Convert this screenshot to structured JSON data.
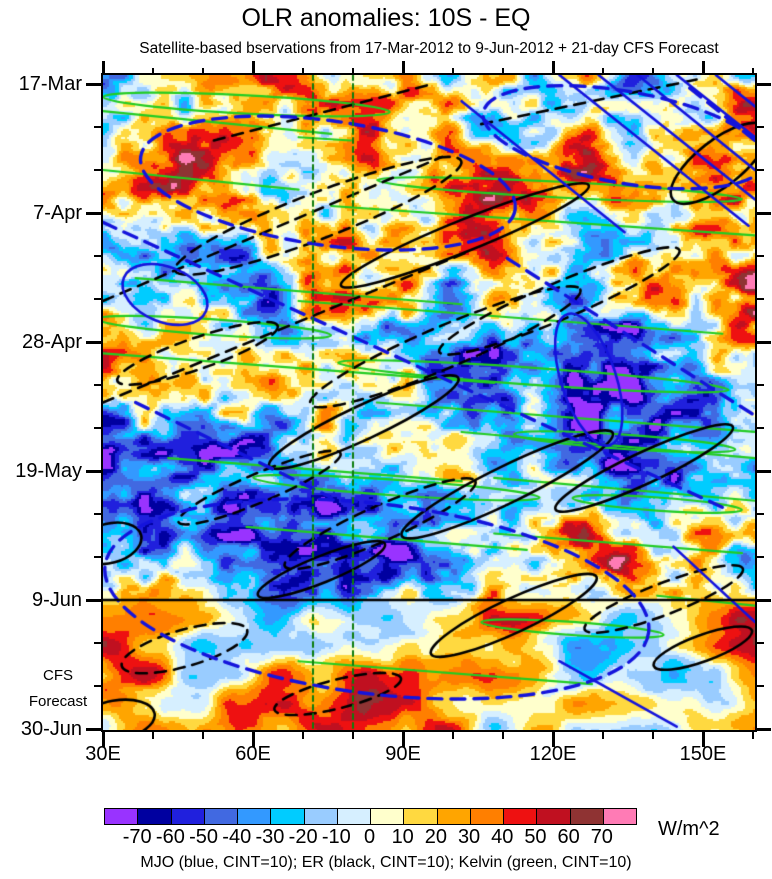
{
  "header": {
    "title": "OLR anomalies: 10S - EQ",
    "subtitle": "Satellite-based bservations from 17-Mar-2012 to 9-Jun-2012 + 21-day CFS Forecast"
  },
  "axes": {
    "y_tick_labels": [
      "17-Mar",
      "7-Apr",
      "28-Apr",
      "19-May",
      "9-Jun",
      "30-Jun"
    ],
    "x_tick_labels": [
      "30E",
      "60E",
      "90E",
      "120E",
      "150E"
    ],
    "cfs_label": [
      "CFS",
      "Forecast"
    ]
  },
  "colorbar": {
    "units": "W/m^2",
    "levels": [
      -70,
      -60,
      -50,
      -40,
      -30,
      -20,
      -10,
      0,
      10,
      20,
      30,
      40,
      50,
      60,
      70
    ],
    "colors": [
      "#9933FF",
      "#0000A0",
      "#2020DD",
      "#4169E1",
      "#3399FF",
      "#00CCFF",
      "#99CCFF",
      "#D6EFFF",
      "#FFFFCC",
      "#FFD940",
      "#FFA500",
      "#FF7F00",
      "#EE1111",
      "#C01020",
      "#8F3333",
      "#FF7BB5"
    ]
  },
  "legend": {
    "text": "MJO (blue, CINT=10); ER (black, CINT=10); Kelvin (green, CINT=10)"
  },
  "chart_data": {
    "type": "heatmap",
    "subtype": "hovmoller_filled_contour",
    "title": "OLR anomalies: 10S - EQ",
    "field_variable": "OLR anomaly",
    "units": "W/m^2",
    "latitude_band": "10S - EQ",
    "x_axis": {
      "label_ticks": [
        "30E",
        "60E",
        "90E",
        "120E",
        "150E"
      ],
      "major_ticks_deg": [
        30,
        60,
        90,
        120,
        150
      ],
      "minor_interval_deg": 10,
      "range_deg_east": [
        30,
        160.4
      ]
    },
    "y_axis": {
      "time_increases_downward": true,
      "major_tick_dates": [
        "17-Mar",
        "7-Apr",
        "28-Apr",
        "19-May",
        "9-Jun",
        "30-Jun"
      ],
      "major_interval_days": 21,
      "minor_interval_days": 7,
      "observation_period": "17-Mar-2012 to 9-Jun-2012",
      "forecast": "21-day CFS Forecast",
      "obs_forecast_boundary_date": "9-Jun"
    },
    "color_levels": [
      -70,
      -60,
      -50,
      -40,
      -30,
      -20,
      -10,
      0,
      10,
      20,
      30,
      40,
      50,
      60,
      70
    ],
    "palette": [
      "#9933FF",
      "#0000A0",
      "#2020DD",
      "#4169E1",
      "#3399FF",
      "#00CCFF",
      "#99CCFF",
      "#D6EFFF",
      "#FFFFCC",
      "#FFD940",
      "#FFA500",
      "#FF7F00",
      "#EE1111",
      "#C01020",
      "#8F3333",
      "#FF7BB5"
    ],
    "reference_longitudes_deg": [
      72,
      80
    ],
    "reference_line_color": "#0D7D0D",
    "overlays": {
      "mjo": {
        "color": "#1414DC",
        "cint": 10,
        "dashed_ellipses": [
          {
            "cx": 0.345,
            "cy": 0.165,
            "rx": 0.29,
            "ry": 0.095,
            "rot": 8
          },
          {
            "cx": 0.42,
            "cy": 0.8,
            "rx": 0.42,
            "ry": 0.145,
            "rot": 7
          },
          {
            "cx": 0.8,
            "cy": 0.095,
            "rx": 0.22,
            "ry": 0.07,
            "rot": 10
          }
        ],
        "dashed_lines": [
          {
            "x0": 0.0,
            "y0": 0.225,
            "x1": 0.45,
            "y1": 0.43
          },
          {
            "x0": 0.45,
            "y0": 0.43,
            "x1": 0.95,
            "y1": 0.66
          },
          {
            "x0": 0.62,
            "y0": 0.28,
            "x1": 1.0,
            "y1": 0.52
          },
          {
            "x0": 0.05,
            "y0": 0.5,
            "x1": 0.35,
            "y1": 0.645
          },
          {
            "x0": 0.9,
            "y0": 0.02,
            "x1": 1.0,
            "y1": 0.1
          }
        ],
        "solid_ellipses": [
          {
            "cx": 0.095,
            "cy": 0.335,
            "rx": 0.068,
            "ry": 0.042,
            "rot": 22
          },
          {
            "cx": 0.745,
            "cy": 0.465,
            "rx": 0.042,
            "ry": 0.105,
            "rot": -18
          }
        ],
        "solid_lines": [
          {
            "x0": 0.7,
            "y0": 0.0,
            "x1": 0.99,
            "y1": 0.23
          },
          {
            "x0": 0.76,
            "y0": 0.0,
            "x1": 1.0,
            "y1": 0.19
          },
          {
            "x0": 0.82,
            "y0": 0.0,
            "x1": 1.0,
            "y1": 0.145
          },
          {
            "x0": 0.88,
            "y0": 0.0,
            "x1": 1.0,
            "y1": 0.095
          },
          {
            "x0": 0.94,
            "y0": 0.0,
            "x1": 1.0,
            "y1": 0.048
          },
          {
            "x0": 0.55,
            "y0": 0.04,
            "x1": 0.8,
            "y1": 0.24
          },
          {
            "x0": 0.875,
            "y0": 0.72,
            "x1": 1.0,
            "y1": 0.835
          },
          {
            "x0": 0.7,
            "y0": 0.895,
            "x1": 0.88,
            "y1": 0.995
          }
        ]
      },
      "er": {
        "color": "#000000",
        "cint": 10,
        "solid_ellipses": [
          {
            "cx": 0.555,
            "cy": 0.245,
            "rx": 0.205,
            "ry": 0.024,
            "rot": -22
          },
          {
            "cx": 0.62,
            "cy": 0.625,
            "rx": 0.18,
            "ry": 0.028,
            "rot": -26
          },
          {
            "cx": 0.83,
            "cy": 0.6,
            "rx": 0.15,
            "ry": 0.024,
            "rot": -25
          },
          {
            "cx": 0.4,
            "cy": 0.53,
            "rx": 0.16,
            "ry": 0.026,
            "rot": -25
          },
          {
            "cx": 0.63,
            "cy": 0.825,
            "rx": 0.14,
            "ry": 0.026,
            "rot": -25
          },
          {
            "cx": 0.335,
            "cy": 0.755,
            "rx": 0.105,
            "ry": 0.02,
            "rot": -22
          },
          {
            "cx": 0.945,
            "cy": 0.135,
            "rx": 0.09,
            "ry": 0.035,
            "rot": -38
          },
          {
            "cx": 0.92,
            "cy": 0.875,
            "rx": 0.08,
            "ry": 0.02,
            "rot": -20
          },
          {
            "cx": 0.01,
            "cy": 0.715,
            "rx": 0.05,
            "ry": 0.03,
            "rot": -15
          },
          {
            "cx": 0.02,
            "cy": 0.985,
            "rx": 0.06,
            "ry": 0.03,
            "rot": -10
          }
        ],
        "dashed_ellipses": [
          {
            "cx": 0.33,
            "cy": 0.215,
            "rx": 0.235,
            "ry": 0.035,
            "rot": -21
          },
          {
            "cx": 0.525,
            "cy": 0.415,
            "rx": 0.225,
            "ry": 0.032,
            "rot": -23
          },
          {
            "cx": 0.7,
            "cy": 0.345,
            "rx": 0.2,
            "ry": 0.028,
            "rot": -23
          },
          {
            "cx": 0.145,
            "cy": 0.425,
            "rx": 0.13,
            "ry": 0.024,
            "rot": -19
          },
          {
            "cx": 0.24,
            "cy": 0.63,
            "rx": 0.135,
            "ry": 0.022,
            "rot": -23
          },
          {
            "cx": 0.425,
            "cy": 0.685,
            "rx": 0.16,
            "ry": 0.027,
            "rot": -24
          },
          {
            "cx": 0.86,
            "cy": 0.8,
            "rx": 0.13,
            "ry": 0.024,
            "rot": -21
          },
          {
            "cx": 0.125,
            "cy": 0.875,
            "rx": 0.1,
            "ry": 0.028,
            "rot": -16
          },
          {
            "cx": 0.36,
            "cy": 0.945,
            "rx": 0.1,
            "ry": 0.022,
            "rot": -14
          }
        ],
        "dashed_lines": [
          {
            "x0": 0.0,
            "y0": 0.345,
            "x1": 0.52,
            "y1": 0.125
          },
          {
            "x0": 0.0,
            "y0": 0.5,
            "x1": 0.56,
            "y1": 0.27
          },
          {
            "x0": 0.17,
            "y0": 0.1,
            "x1": 0.5,
            "y1": 0.015
          },
          {
            "x0": 0.58,
            "y0": 0.075,
            "x1": 0.92,
            "y1": 0.005
          }
        ]
      },
      "kelvin": {
        "color": "#22CC22",
        "cint": 10,
        "ellipses": [
          {
            "cx": 0.22,
            "cy": 0.045,
            "rx": 0.22,
            "ry": 0.014,
            "rot": 3
          },
          {
            "cx": 0.17,
            "cy": 0.385,
            "rx": 0.18,
            "ry": 0.012,
            "rot": 4
          },
          {
            "cx": 0.7,
            "cy": 0.175,
            "rx": 0.28,
            "ry": 0.012,
            "rot": 3
          },
          {
            "cx": 0.66,
            "cy": 0.46,
            "rx": 0.3,
            "ry": 0.013,
            "rot": 4
          },
          {
            "cx": 0.8,
            "cy": 0.56,
            "rx": 0.17,
            "ry": 0.011,
            "rot": 4
          },
          {
            "cx": 0.45,
            "cy": 0.63,
            "rx": 0.22,
            "ry": 0.012,
            "rot": 4
          },
          {
            "cx": 0.85,
            "cy": 0.655,
            "rx": 0.13,
            "ry": 0.01,
            "rot": 4
          },
          {
            "cx": 0.72,
            "cy": 0.845,
            "rx": 0.14,
            "ry": 0.01,
            "rot": 4
          }
        ],
        "lines": [
          {
            "x0": 0.0,
            "y0": 0.055,
            "x1": 0.35,
            "y1": 0.09
          },
          {
            "x0": 0.0,
            "y0": 0.145,
            "x1": 0.3,
            "y1": 0.175
          },
          {
            "x0": 0.35,
            "y0": 0.2,
            "x1": 1.0,
            "y1": 0.245
          },
          {
            "x0": 0.05,
            "y0": 0.31,
            "x1": 0.55,
            "y1": 0.35
          },
          {
            "x0": 0.3,
            "y0": 0.345,
            "x1": 0.95,
            "y1": 0.395
          },
          {
            "x0": 0.0,
            "y0": 0.425,
            "x1": 0.6,
            "y1": 0.47
          },
          {
            "x0": 0.42,
            "y0": 0.5,
            "x1": 1.0,
            "y1": 0.545
          },
          {
            "x0": 0.55,
            "y0": 0.545,
            "x1": 1.0,
            "y1": 0.585
          },
          {
            "x0": 0.1,
            "y0": 0.585,
            "x1": 0.55,
            "y1": 0.62
          },
          {
            "x0": 0.6,
            "y0": 0.615,
            "x1": 1.0,
            "y1": 0.65
          },
          {
            "x0": 0.22,
            "y0": 0.69,
            "x1": 0.65,
            "y1": 0.725
          },
          {
            "x0": 0.6,
            "y0": 0.7,
            "x1": 0.98,
            "y1": 0.73
          },
          {
            "x0": 0.85,
            "y0": 0.795,
            "x1": 1.0,
            "y1": 0.81
          },
          {
            "x0": 0.3,
            "y0": 0.895,
            "x1": 0.75,
            "y1": 0.93
          },
          {
            "x0": 0.3,
            "y0": 0.095,
            "x1": 0.38,
            "y1": 0.1
          }
        ]
      }
    },
    "legend_note": "MJO (blue, CINT=10); ER (black, CINT=10); Kelvin (green, CINT=10)"
  }
}
